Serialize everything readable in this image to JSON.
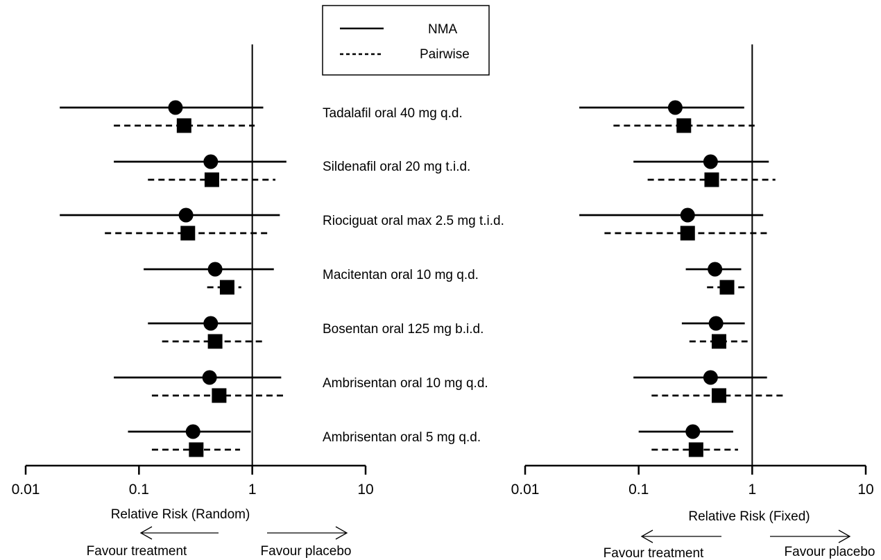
{
  "legend": {
    "entries": [
      {
        "label": "NMA",
        "style": "solid"
      },
      {
        "label": "Pairwise",
        "style": "dashed"
      }
    ]
  },
  "treatments": [
    "Tadalafil oral 40 mg q.d.",
    "Sildenafil oral 20 mg t.i.d.",
    "Riociguat oral max 2.5 mg t.i.d.",
    "Macitentan oral 10 mg q.d.",
    "Bosentan oral 125 mg b.i.d.",
    "Ambrisentan oral 10 mg q.d.",
    "Ambrisentan oral 5 mg q.d."
  ],
  "colors": {
    "ink": "#000000"
  },
  "chart_data": [
    {
      "type": "forest",
      "scale": "log",
      "xlim": [
        0.01,
        10
      ],
      "ticks": [
        0.01,
        0.1,
        1,
        10
      ],
      "tick_labels": [
        "0.01",
        "0.1",
        "1",
        "10"
      ],
      "reference_line": 1,
      "xlabel": "Relative Risk (Random)",
      "direction_left": "Favour treatment",
      "direction_right": "Favour placebo",
      "series": [
        {
          "name": "NMA",
          "marker": "circle",
          "line": "solid",
          "estimates": [
            0.21,
            0.43,
            0.26,
            0.47,
            0.43,
            0.42,
            0.3
          ],
          "lower": [
            0.02,
            0.06,
            0.02,
            0.11,
            0.12,
            0.06,
            0.08
          ],
          "upper": [
            1.25,
            2.0,
            1.75,
            1.55,
            0.98,
            1.8,
            0.97
          ]
        },
        {
          "name": "Pairwise",
          "marker": "square",
          "line": "dashed",
          "estimates": [
            0.25,
            0.44,
            0.27,
            0.6,
            0.47,
            0.51,
            0.32
          ],
          "lower": [
            0.06,
            0.12,
            0.05,
            0.4,
            0.16,
            0.13,
            0.13
          ],
          "upper": [
            1.05,
            1.6,
            1.45,
            0.8,
            1.25,
            1.95,
            0.78
          ]
        }
      ]
    },
    {
      "type": "forest",
      "scale": "log",
      "xlim": [
        0.01,
        10
      ],
      "ticks": [
        0.01,
        0.1,
        1,
        10
      ],
      "tick_labels": [
        "0.01",
        "0.1",
        "1",
        "10"
      ],
      "reference_line": 1,
      "xlabel": "Relative Risk (Fixed)",
      "direction_left": "Favour treatment",
      "direction_right": "Favour placebo",
      "series": [
        {
          "name": "NMA",
          "marker": "circle",
          "line": "solid",
          "estimates": [
            0.21,
            0.43,
            0.27,
            0.47,
            0.48,
            0.43,
            0.3
          ],
          "lower": [
            0.03,
            0.09,
            0.03,
            0.26,
            0.24,
            0.09,
            0.1
          ],
          "upper": [
            0.85,
            1.4,
            1.25,
            0.8,
            0.86,
            1.35,
            0.68
          ]
        },
        {
          "name": "Pairwise",
          "marker": "square",
          "line": "dashed",
          "estimates": [
            0.25,
            0.44,
            0.27,
            0.6,
            0.51,
            0.51,
            0.32
          ],
          "lower": [
            0.06,
            0.12,
            0.05,
            0.4,
            0.28,
            0.13,
            0.13
          ],
          "upper": [
            1.05,
            1.6,
            1.4,
            0.88,
            0.91,
            1.95,
            0.75
          ]
        }
      ]
    }
  ]
}
